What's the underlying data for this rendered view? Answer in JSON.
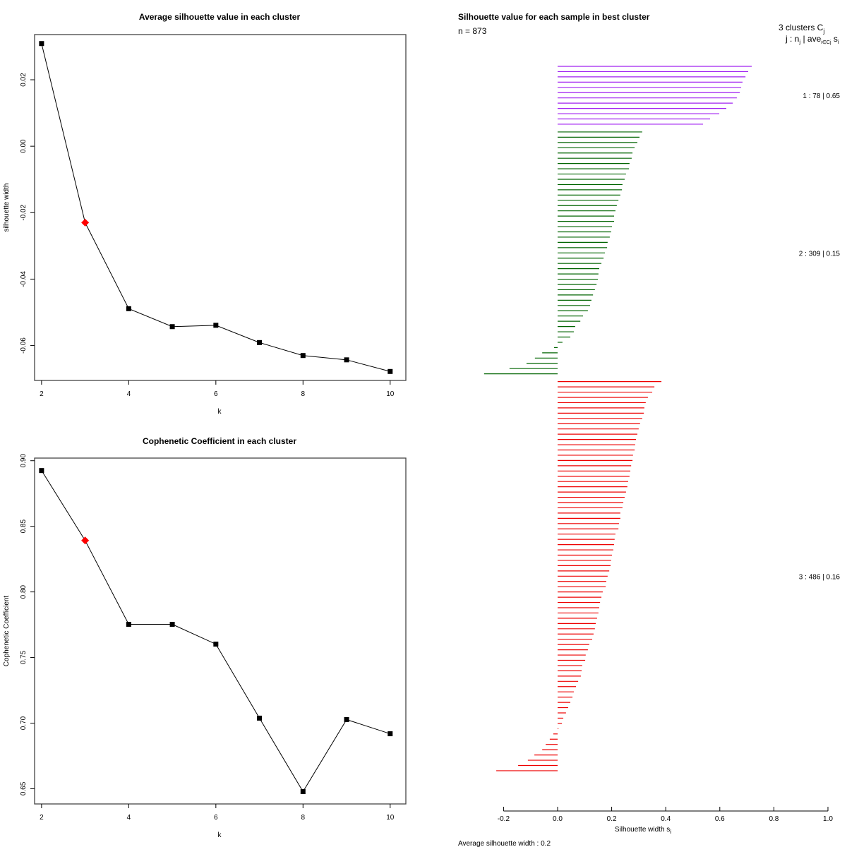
{
  "chart_data": [
    {
      "id": "avg-silhouette",
      "type": "line",
      "title": "Average silhouette value in each cluster",
      "xlabel": "k",
      "ylabel": "silhouette width",
      "x": [
        2,
        3,
        4,
        5,
        6,
        7,
        8,
        9,
        10
      ],
      "values": [
        0.0309,
        -0.023,
        -0.0489,
        -0.0543,
        -0.0539,
        -0.0591,
        -0.063,
        -0.0643,
        -0.0678
      ],
      "highlight_k": 3,
      "highlight_color": "#ff0000",
      "marker_color": "#000000",
      "xticks": [
        2,
        4,
        6,
        8,
        10
      ],
      "xtick_labels": [
        "2",
        "4",
        "6",
        "8",
        "10"
      ],
      "yticks": [
        0.02,
        0.0,
        -0.02,
        -0.04,
        -0.06
      ],
      "ytick_labels": [
        "0.02",
        "0.00",
        "-0.02",
        "-0.04",
        "-0.06"
      ],
      "xlim": [
        1.84,
        10.36
      ],
      "ylim": [
        -0.0705,
        0.0336
      ],
      "grid": false
    },
    {
      "id": "cophenetic",
      "type": "line",
      "title": "Cophenetic Coefficient in each cluster",
      "xlabel": "k",
      "ylabel": "Cophenetic Coefficient",
      "x": [
        2,
        3,
        4,
        5,
        6,
        7,
        8,
        9,
        10
      ],
      "values": [
        0.8925,
        0.8392,
        0.7753,
        0.7753,
        0.7602,
        0.7038,
        0.6478,
        0.7027,
        0.6919
      ],
      "highlight_k": 3,
      "highlight_color": "#ff0000",
      "marker_color": "#000000",
      "xticks": [
        2,
        4,
        6,
        8,
        10
      ],
      "xtick_labels": [
        "2",
        "4",
        "6",
        "8",
        "10"
      ],
      "yticks": [
        0.9,
        0.85,
        0.8,
        0.75,
        0.7,
        0.65
      ],
      "ytick_labels": [
        "0.90",
        "0.85",
        "0.80",
        "0.75",
        "0.70",
        "0.65"
      ],
      "xlim": [
        1.84,
        10.36
      ],
      "ylim": [
        0.6384,
        0.902
      ],
      "grid": false
    },
    {
      "id": "silhouette-bars",
      "type": "bar",
      "orientation": "horizontal",
      "title": "Silhouette value for each sample in best cluster",
      "subtitle": "n = 873",
      "xlabel": "Silhouette width s",
      "xlabel_sub": "i",
      "xticks": [
        -0.2,
        0.0,
        0.2,
        0.4,
        0.6,
        0.8,
        1.0
      ],
      "xtick_labels": [
        "-0.2",
        "0.0",
        "0.2",
        "0.4",
        "0.6",
        "0.8",
        "1.0"
      ],
      "xlim": [
        -0.2,
        1.0
      ],
      "legend_header": {
        "line1": "3  clusters  C",
        "line1_sub": "j",
        "line2": "j :  n",
        "line2_sub": "j",
        "line2_rest": " | ave",
        "line2_sub2": "i∈Cj",
        "line2_tail": "  s",
        "line2_tail_sub": "i"
      },
      "footer": "Average silhouette width :  0.2",
      "average_width": 0.2,
      "clusters": [
        {
          "j": 1,
          "n": 78,
          "ave": 0.65,
          "label": "1 :   78  |  0.65",
          "color": "#a020f0",
          "values": [
            0.718,
            0.705,
            0.695,
            0.684,
            0.679,
            0.674,
            0.663,
            0.648,
            0.624,
            0.598,
            0.564,
            0.538
          ]
        },
        {
          "j": 2,
          "n": 309,
          "ave": 0.15,
          "label": "2 :   309  |  0.15",
          "color": "#006400",
          "values": [
            0.313,
            0.303,
            0.295,
            0.285,
            0.277,
            0.274,
            0.266,
            0.264,
            0.253,
            0.248,
            0.24,
            0.238,
            0.232,
            0.225,
            0.219,
            0.214,
            0.209,
            0.209,
            0.201,
            0.198,
            0.193,
            0.185,
            0.183,
            0.175,
            0.17,
            0.162,
            0.154,
            0.151,
            0.149,
            0.144,
            0.138,
            0.131,
            0.125,
            0.12,
            0.112,
            0.094,
            0.084,
            0.065,
            0.06,
            0.047,
            0.018,
            -0.013,
            -0.057,
            -0.084,
            -0.115,
            -0.178,
            -0.272
          ]
        },
        {
          "j": 3,
          "n": 486,
          "ave": 0.16,
          "label": "3 :   486  |  0.16",
          "color": "#ee0000",
          "values": [
            0.384,
            0.358,
            0.35,
            0.334,
            0.326,
            0.321,
            0.319,
            0.313,
            0.305,
            0.3,
            0.295,
            0.29,
            0.287,
            0.285,
            0.279,
            0.277,
            0.272,
            0.269,
            0.266,
            0.261,
            0.258,
            0.253,
            0.248,
            0.243,
            0.24,
            0.232,
            0.232,
            0.227,
            0.225,
            0.214,
            0.211,
            0.209,
            0.206,
            0.201,
            0.198,
            0.196,
            0.191,
            0.185,
            0.18,
            0.178,
            0.167,
            0.162,
            0.157,
            0.154,
            0.151,
            0.146,
            0.141,
            0.138,
            0.133,
            0.128,
            0.117,
            0.112,
            0.104,
            0.102,
            0.091,
            0.089,
            0.086,
            0.076,
            0.068,
            0.06,
            0.055,
            0.047,
            0.039,
            0.031,
            0.021,
            0.016,
            0.003,
            -0.016,
            -0.029,
            -0.044,
            -0.057,
            -0.086,
            -0.11,
            -0.146,
            -0.227
          ]
        }
      ]
    }
  ]
}
